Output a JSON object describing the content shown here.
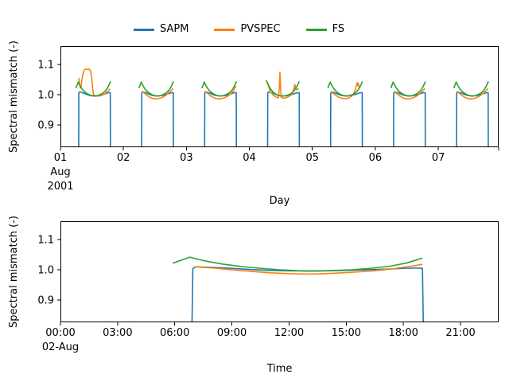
{
  "figure": {
    "background": "#ffffff",
    "text_color": "#000000"
  },
  "legend": {
    "position": "upper center, above top axes, no frame",
    "entries": [
      {
        "label": "SAPM",
        "color": "#1f77b4"
      },
      {
        "label": "PVSPEC",
        "color": "#ff7f0e"
      },
      {
        "label": "FS",
        "color": "#2ca02c"
      }
    ]
  },
  "chart_data": [
    {
      "type": "line",
      "title": "",
      "xlabel": "Day",
      "ylabel": "Spectral mismatch (-)",
      "x_unit": "hours since 2001-08-01 00:00",
      "start_date_label": [
        "01",
        "Aug",
        "2001"
      ],
      "xlim_hours": [
        0,
        167
      ],
      "ylim": [
        0.826,
        1.161
      ],
      "grid": false,
      "yticks": [
        {
          "v": 0.9,
          "label": "0.9"
        },
        {
          "v": 1.0,
          "label": "1.0"
        },
        {
          "v": 1.1,
          "label": "1.1"
        }
      ],
      "xticks": [
        {
          "hour": 0,
          "label": "01",
          "sublabels": [
            "Aug",
            "2001"
          ]
        },
        {
          "hour": 24,
          "label": "02"
        },
        {
          "hour": 48,
          "label": "03"
        },
        {
          "hour": 72,
          "label": "04"
        },
        {
          "hour": 96,
          "label": "05"
        },
        {
          "hour": 120,
          "label": "06"
        },
        {
          "hour": 144,
          "label": "07"
        },
        {
          "hour": 167,
          "label": ""
        }
      ],
      "days": 7,
      "series": [
        {
          "name": "SAPM",
          "color": "#1f77b4",
          "daily_default": [
            [
              6.95,
              0.8
            ],
            [
              7.0,
              1.004
            ],
            [
              7.2,
              1.009
            ],
            [
              8,
              1.008
            ],
            [
              9,
              1.005
            ],
            [
              10,
              1.001
            ],
            [
              11,
              0.998
            ],
            [
              12,
              0.9965
            ],
            [
              13,
              0.996
            ],
            [
              14,
              0.9965
            ],
            [
              15,
              0.998
            ],
            [
              16,
              1.0
            ],
            [
              17,
              1.003
            ],
            [
              18,
              1.006
            ],
            [
              18.7,
              1.007
            ],
            [
              19.0,
              1.006
            ],
            [
              19.05,
              0.8
            ]
          ],
          "daily_overrides": {}
        },
        {
          "name": "PVSPEC",
          "color": "#ff7f0e",
          "daily_default": [
            [
              7.0,
              1.012
            ],
            [
              8,
              1.005
            ],
            [
              9,
              0.998
            ],
            [
              10,
              0.992
            ],
            [
              11,
              0.988
            ],
            [
              12,
              0.986
            ],
            [
              13,
              0.9862
            ],
            [
              14,
              0.9885
            ],
            [
              15,
              0.992
            ],
            [
              16,
              0.997
            ],
            [
              17,
              1.004
            ],
            [
              18,
              1.012
            ],
            [
              18.9,
              1.021
            ]
          ],
          "daily_overrides": {
            "1": [
              [
                7.0,
                1.056
              ],
              [
                7.3,
                1.035
              ],
              [
                7.6,
                1.022
              ],
              [
                7.9,
                1.03
              ],
              [
                8.2,
                1.05
              ],
              [
                8.6,
                1.07
              ],
              [
                9.0,
                1.081
              ],
              [
                9.5,
                1.085
              ],
              [
                10.0,
                1.083
              ],
              [
                10.5,
                1.086
              ],
              [
                11.0,
                1.085
              ],
              [
                11.5,
                1.078
              ],
              [
                11.9,
                1.058
              ],
              [
                12.3,
                1.02
              ],
              [
                12.6,
                1.001
              ],
              [
                13.0,
                0.997
              ],
              [
                14,
                0.9955
              ],
              [
                15,
                0.996
              ],
              [
                16,
                0.999
              ],
              [
                17,
                1.004
              ],
              [
                18,
                1.011
              ],
              [
                18.9,
                1.02
              ]
            ],
            "3": [
              [
                7.0,
                1.012
              ],
              [
                8,
                1.005
              ],
              [
                9,
                0.998
              ],
              [
                10,
                0.992
              ],
              [
                11,
                0.988
              ],
              [
                12,
                0.986
              ],
              [
                13,
                0.9862
              ],
              [
                14,
                0.9885
              ],
              [
                15,
                0.992
              ],
              [
                16,
                0.997
              ],
              [
                17,
                1.004
              ],
              [
                18,
                1.013
              ],
              [
                18.5,
                1.024
              ],
              [
                18.9,
                1.028
              ]
            ],
            "4": [
              [
                7.0,
                1.04
              ],
              [
                7.4,
                1.025
              ],
              [
                8,
                1.01
              ],
              [
                9,
                0.999
              ],
              [
                10,
                0.993
              ],
              [
                10.7,
                0.99
              ],
              [
                11.1,
                0.991
              ],
              [
                11.4,
                1.02
              ],
              [
                11.65,
                1.075
              ],
              [
                11.9,
                1.02
              ],
              [
                12.2,
                0.991
              ],
              [
                13,
                0.988
              ],
              [
                14,
                0.99
              ],
              [
                15,
                0.994
              ],
              [
                16,
                1.0
              ],
              [
                16.6,
                1.008
              ],
              [
                17.0,
                1.022
              ],
              [
                17.3,
                1.034
              ],
              [
                17.6,
                1.024
              ],
              [
                18.1,
                1.016
              ],
              [
                18.8,
                1.021
              ]
            ],
            "5": [
              [
                7.0,
                1.01
              ],
              [
                8,
                1.004
              ],
              [
                9,
                0.998
              ],
              [
                10,
                0.992
              ],
              [
                11,
                0.989
              ],
              [
                12,
                0.987
              ],
              [
                13,
                0.987
              ],
              [
                14,
                0.99
              ],
              [
                15,
                0.995
              ],
              [
                15.7,
                1.002
              ],
              [
                16.3,
                1.015
              ],
              [
                16.8,
                1.03
              ],
              [
                17.1,
                1.04
              ],
              [
                17.3,
                1.03
              ],
              [
                17.5,
                1.039
              ],
              [
                17.8,
                1.025
              ]
            ]
          }
        },
        {
          "name": "FS",
          "color": "#2ca02c",
          "daily_default": [
            [
              5.9,
              1.022
            ],
            [
              6.3,
              1.031
            ],
            [
              6.8,
              1.042
            ],
            [
              7.2,
              1.034
            ],
            [
              7.8,
              1.025
            ],
            [
              8.5,
              1.016
            ],
            [
              9.5,
              1.008
            ],
            [
              10.5,
              1.002
            ],
            [
              11.5,
              0.998
            ],
            [
              12.5,
              0.996
            ],
            [
              13.3,
              0.996
            ],
            [
              14.3,
              0.9975
            ],
            [
              15.3,
              1.001
            ],
            [
              16.3,
              1.006
            ],
            [
              17.3,
              1.014
            ],
            [
              18.2,
              1.027
            ],
            [
              18.8,
              1.038
            ],
            [
              19.1,
              1.044
            ]
          ],
          "daily_overrides": {
            "4": [
              [
                6.4,
                1.048
              ],
              [
                7.2,
                1.032
              ],
              [
                8,
                1.02
              ],
              [
                9,
                1.009
              ],
              [
                10,
                1.002
              ],
              [
                11,
                0.998
              ],
              [
                12,
                0.996
              ],
              [
                13,
                0.9955
              ],
              [
                14,
                0.997
              ],
              [
                15,
                1.0
              ],
              [
                16,
                1.005
              ],
              [
                17,
                1.013
              ],
              [
                18,
                1.026
              ],
              [
                18.7,
                1.038
              ],
              [
                19.0,
                1.044
              ]
            ]
          }
        }
      ]
    },
    {
      "type": "line",
      "title": "",
      "xlabel": "Time",
      "ylabel": "Spectral mismatch (-)",
      "x_unit": "hours on 2001-08-02",
      "date_label": "02-Aug",
      "xlim_hours": [
        0,
        23
      ],
      "ylim": [
        0.826,
        1.161
      ],
      "grid": false,
      "yticks": [
        {
          "v": 0.9,
          "label": "0.9"
        },
        {
          "v": 1.0,
          "label": "1.0"
        },
        {
          "v": 1.1,
          "label": "1.1"
        }
      ],
      "xticks": [
        {
          "hour": 0,
          "label": "00:00",
          "sublabels": [
            "02-Aug"
          ]
        },
        {
          "hour": 3,
          "label": "03:00"
        },
        {
          "hour": 6,
          "label": "06:00"
        },
        {
          "hour": 9,
          "label": "09:00"
        },
        {
          "hour": 12,
          "label": "12:00"
        },
        {
          "hour": 15,
          "label": "15:00"
        },
        {
          "hour": 18,
          "label": "18:00"
        },
        {
          "hour": 21,
          "label": "21:00"
        }
      ],
      "series": [
        {
          "name": "SAPM",
          "color": "#1f77b4",
          "points": [
            [
              6.9,
              0.8
            ],
            [
              6.95,
              1.004
            ],
            [
              7.1,
              1.01
            ],
            [
              8,
              1.008
            ],
            [
              9,
              1.005
            ],
            [
              10,
              1.001
            ],
            [
              11,
              0.998
            ],
            [
              12,
              0.9965
            ],
            [
              13,
              0.996
            ],
            [
              14,
              0.9965
            ],
            [
              15,
              0.998
            ],
            [
              16,
              1.0
            ],
            [
              17,
              1.002
            ],
            [
              18,
              1.005
            ],
            [
              18.6,
              1.006
            ],
            [
              19.0,
              1.005
            ],
            [
              19.05,
              0.8
            ]
          ]
        },
        {
          "name": "PVSPEC",
          "color": "#ff7f0e",
          "points": [
            [
              7.0,
              1.01
            ],
            [
              7.5,
              1.008
            ],
            [
              8,
              1.006
            ],
            [
              9,
              1.0
            ],
            [
              10,
              0.995
            ],
            [
              11,
              0.99
            ],
            [
              12,
              0.9875
            ],
            [
              12.7,
              0.986
            ],
            [
              13.5,
              0.9865
            ],
            [
              14.5,
              0.989
            ],
            [
              15.5,
              0.9925
            ],
            [
              16.5,
              0.997
            ],
            [
              17.5,
              1.004
            ],
            [
              18.3,
              1.011
            ],
            [
              19.0,
              1.018
            ]
          ]
        },
        {
          "name": "FS",
          "color": "#2ca02c",
          "points": [
            [
              5.9,
              1.022
            ],
            [
              6.3,
              1.031
            ],
            [
              6.8,
              1.042
            ],
            [
              7.2,
              1.035
            ],
            [
              7.8,
              1.027
            ],
            [
              8.5,
              1.019
            ],
            [
              9.5,
              1.011
            ],
            [
              10.5,
              1.005
            ],
            [
              11.5,
              1.0
            ],
            [
              12.5,
              0.997
            ],
            [
              13.3,
              0.996
            ],
            [
              14.3,
              0.9975
            ],
            [
              15.3,
              1.0
            ],
            [
              16.3,
              1.005
            ],
            [
              17.3,
              1.012
            ],
            [
              18.2,
              1.023
            ],
            [
              19.0,
              1.039
            ]
          ]
        }
      ]
    }
  ]
}
